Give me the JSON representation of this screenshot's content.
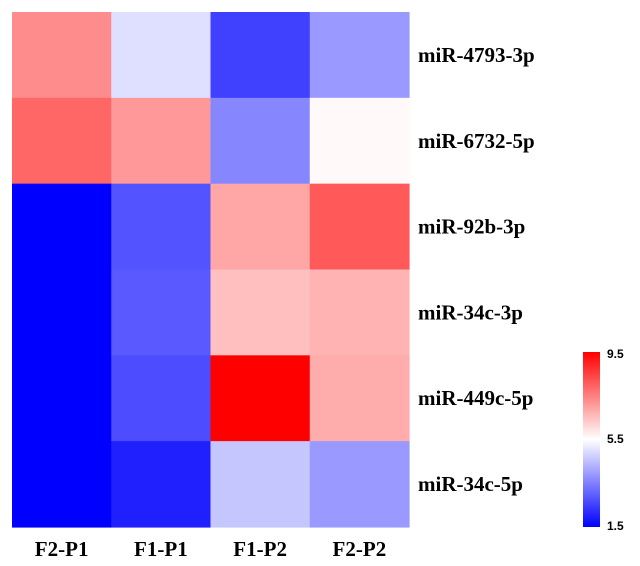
{
  "chart_data": {
    "type": "heatmap",
    "columns": [
      "F2-P1",
      "F1-P1",
      "F1-P2",
      "F2-P2"
    ],
    "rows": [
      "miR-4793-3p",
      "miR-6732-5p",
      "miR-92b-3p",
      "miR-34c-3p",
      "miR-449c-5p",
      "miR-34c-5p"
    ],
    "values": [
      [
        7.3,
        5.0,
        2.5,
        3.9
      ],
      [
        7.9,
        7.1,
        3.6,
        5.6
      ],
      [
        1.5,
        2.8,
        6.9,
        8.1
      ],
      [
        1.5,
        2.9,
        6.5,
        6.7
      ],
      [
        1.5,
        2.7,
        9.5,
        6.8
      ],
      [
        1.5,
        2.0,
        4.6,
        3.9
      ]
    ],
    "colorscale": {
      "min": 1.5,
      "mid": 5.5,
      "max": 9.5,
      "low_color": "#0000ff",
      "mid_color": "#ffffff",
      "high_color": "#ff0000",
      "ticks": [
        "9.5",
        "5.5",
        "1.5"
      ]
    },
    "legend_position": "right"
  }
}
